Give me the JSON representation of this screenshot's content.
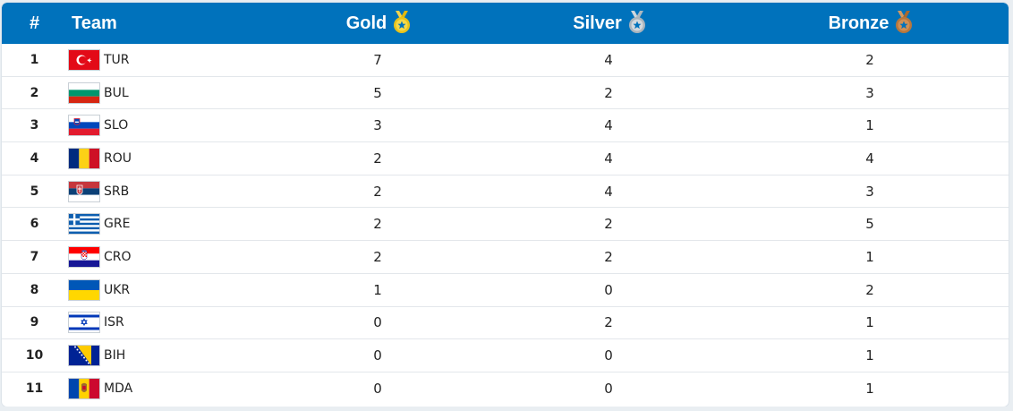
{
  "header": {
    "rank_label": "#",
    "team_label": "Team",
    "gold_label": "Gold",
    "silver_label": "Silver",
    "bronze_label": "Bronze"
  },
  "colors": {
    "header_bg": "#0072bc",
    "gold": "#e8c21a",
    "silver": "#a9b4bd",
    "bronze": "#b7773d"
  },
  "rows": [
    {
      "rank": "1",
      "team": "TUR",
      "gold": "7",
      "silver": "4",
      "bronze": "2",
      "flag": "flag-turkey"
    },
    {
      "rank": "2",
      "team": "BUL",
      "gold": "5",
      "silver": "2",
      "bronze": "3",
      "flag": "flag-bulgaria"
    },
    {
      "rank": "3",
      "team": "SLO",
      "gold": "3",
      "silver": "4",
      "bronze": "1",
      "flag": "flag-slovenia"
    },
    {
      "rank": "4",
      "team": "ROU",
      "gold": "2",
      "silver": "4",
      "bronze": "4",
      "flag": "flag-romania"
    },
    {
      "rank": "5",
      "team": "SRB",
      "gold": "2",
      "silver": "4",
      "bronze": "3",
      "flag": "flag-serbia"
    },
    {
      "rank": "6",
      "team": "GRE",
      "gold": "2",
      "silver": "2",
      "bronze": "5",
      "flag": "flag-greece"
    },
    {
      "rank": "7",
      "team": "CRO",
      "gold": "2",
      "silver": "2",
      "bronze": "1",
      "flag": "flag-croatia"
    },
    {
      "rank": "8",
      "team": "UKR",
      "gold": "1",
      "silver": "0",
      "bronze": "2",
      "flag": "flag-ukraine"
    },
    {
      "rank": "9",
      "team": "ISR",
      "gold": "0",
      "silver": "2",
      "bronze": "1",
      "flag": "flag-israel"
    },
    {
      "rank": "10",
      "team": "BIH",
      "gold": "0",
      "silver": "0",
      "bronze": "1",
      "flag": "flag-bosnia"
    },
    {
      "rank": "11",
      "team": "MDA",
      "gold": "0",
      "silver": "0",
      "bronze": "1",
      "flag": "flag-moldova"
    }
  ]
}
